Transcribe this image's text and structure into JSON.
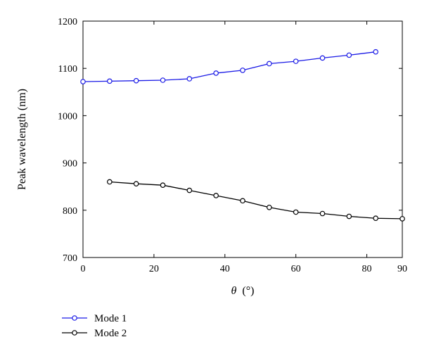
{
  "chart_data": {
    "type": "line",
    "xlabel_symbol": "θ",
    "xlabel_unit": "(°)",
    "ylabel": "Peak wavelength (nm)",
    "xlim": [
      0,
      90
    ],
    "ylim": [
      700,
      1200
    ],
    "xticks": [
      0,
      20,
      40,
      60,
      80,
      90
    ],
    "yticks": [
      700,
      800,
      900,
      1000,
      1100,
      1200
    ],
    "grid": false,
    "legend_position": "bottom-left, below plot",
    "series": [
      {
        "name": "Mode 1",
        "color": "#1a1ae6",
        "marker": "open-circle",
        "x": [
          0,
          7.5,
          15,
          22.5,
          30,
          37.5,
          45,
          52.5,
          60,
          67.5,
          75,
          82.5
        ],
        "y": [
          1072,
          1073,
          1074,
          1075,
          1078,
          1090,
          1096,
          1110,
          1115,
          1122,
          1128,
          1135
        ]
      },
      {
        "name": "Mode 2",
        "color": "#000000",
        "marker": "open-circle",
        "x": [
          7.5,
          15,
          22.5,
          30,
          37.5,
          45,
          52.5,
          60,
          67.5,
          75,
          82.5,
          90
        ],
        "y": [
          860,
          856,
          853,
          842,
          831,
          820,
          806,
          796,
          793,
          787,
          783,
          782
        ]
      }
    ]
  }
}
